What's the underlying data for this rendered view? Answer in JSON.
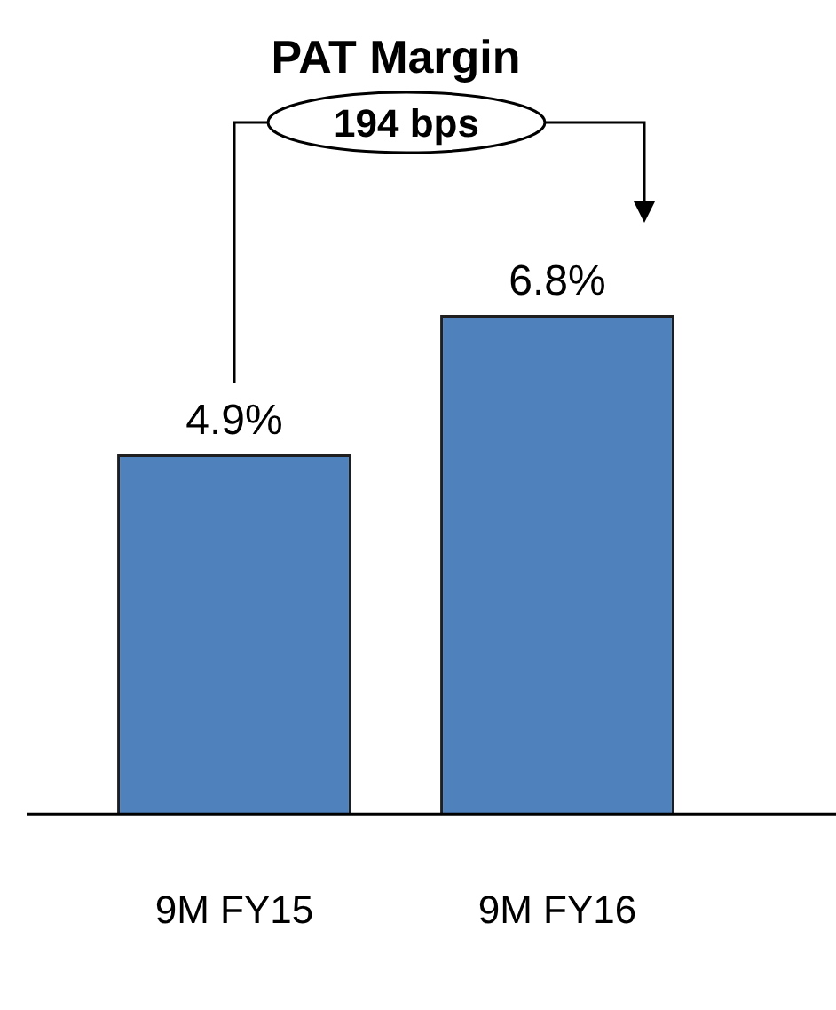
{
  "chart_data": {
    "type": "bar",
    "title": "PAT Margin",
    "categories": [
      "9M FY15",
      "9M FY16"
    ],
    "values": [
      4.9,
      6.8
    ],
    "value_labels": [
      "4.9%",
      "6.8%"
    ],
    "color": "#4f81bd",
    "annotations": [
      "194 bps"
    ],
    "grid": false,
    "legend": false
  }
}
